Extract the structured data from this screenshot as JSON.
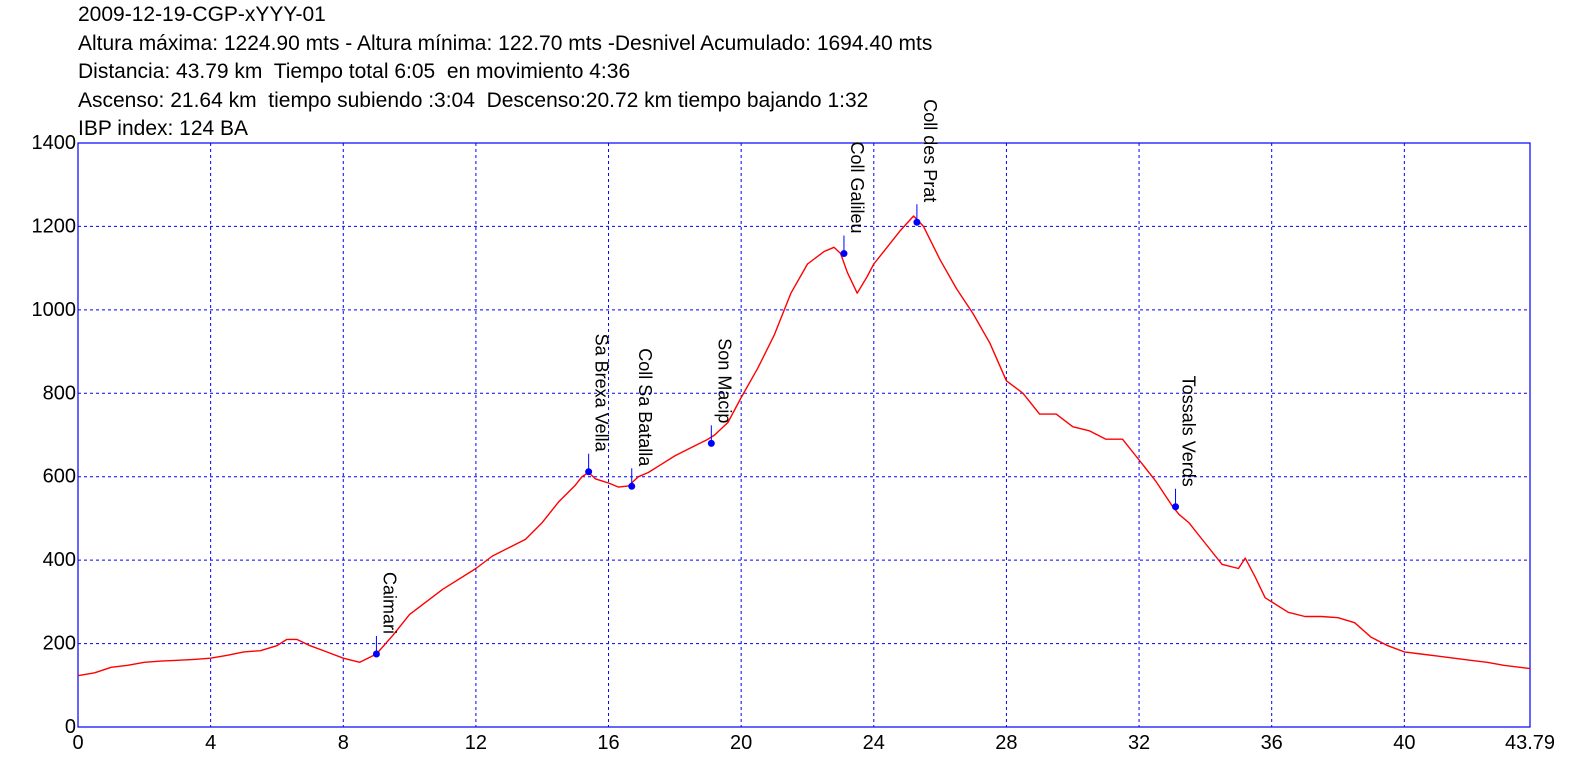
{
  "header": {
    "line1": "2009-12-19-CGP-xYYY-01",
    "line2": "Altura máxima: 1224.90 mts - Altura mínima: 122.70 mts -Desnivel Acumulado: 1694.40 mts",
    "line3": "Distancia: 43.79 km  Tiempo total 6:05  en movimiento 4:36",
    "line4": "Ascenso: 21.64 km  tiempo subiendo :3:04  Descenso:20.72 km tiempo bajando 1:32",
    "line5": "IBP index: 124 BA"
  },
  "chart_data": {
    "type": "line",
    "xlim": [
      0,
      43.79
    ],
    "ylim": [
      0,
      1400
    ],
    "x_ticks": [
      0,
      4,
      8,
      12,
      16,
      20,
      24,
      28,
      32,
      36,
      40,
      43.79
    ],
    "x_tick_labels": [
      "0",
      "4",
      "8",
      "12",
      "16",
      "20",
      "24",
      "28",
      "32",
      "36",
      "40",
      "43.79"
    ],
    "y_ticks": [
      0,
      200,
      400,
      600,
      800,
      1000,
      1200,
      1400
    ],
    "y_tick_labels": [
      "0",
      "200",
      "400",
      "600",
      "800",
      "1000",
      "1200",
      "1400"
    ],
    "grid": true,
    "line_color": "#ff0000",
    "marker_color": "#0000ff",
    "axis_color": "#0000ff",
    "series": [
      {
        "x": [
          0,
          0.5,
          1,
          1.5,
          2,
          2.5,
          3,
          3.5,
          4,
          4.5,
          5,
          5.5,
          6,
          6.3,
          6.6,
          7,
          7.5,
          8,
          8.5,
          9,
          9.5,
          10,
          11,
          12,
          12.5,
          13,
          13.5,
          14,
          14.5,
          15,
          15.2,
          15.4,
          15.6,
          15.8,
          16,
          16.3,
          16.6,
          16.9,
          17.2,
          17.6,
          18,
          18.5,
          19,
          19.2,
          19.6,
          20,
          20.5,
          21,
          21.5,
          22,
          22.5,
          22.8,
          23,
          23.2,
          23.5,
          23.8,
          24,
          24.4,
          24.8,
          25.2,
          25.5,
          26,
          26.5,
          27,
          27.5,
          28,
          28.5,
          29,
          29.5,
          30,
          30.5,
          31,
          31.5,
          32,
          32.5,
          33,
          33.2,
          33.5,
          34,
          34.5,
          35,
          35.2,
          35.5,
          35.8,
          36,
          36.5,
          37,
          37.5,
          38,
          38.5,
          39,
          39.5,
          40,
          40.5,
          41,
          41.5,
          42,
          42.5,
          43,
          43.79
        ],
        "y": [
          123,
          130,
          143,
          148,
          155,
          158,
          160,
          162,
          165,
          172,
          180,
          183,
          195,
          210,
          210,
          195,
          180,
          165,
          155,
          175,
          220,
          270,
          330,
          380,
          410,
          430,
          450,
          490,
          540,
          580,
          600,
          610,
          595,
          590,
          585,
          575,
          578,
          600,
          610,
          630,
          650,
          670,
          690,
          700,
          730,
          790,
          860,
          940,
          1040,
          1110,
          1140,
          1150,
          1135,
          1090,
          1040,
          1080,
          1110,
          1150,
          1190,
          1225,
          1200,
          1120,
          1050,
          990,
          920,
          830,
          800,
          750,
          750,
          720,
          710,
          690,
          690,
          640,
          590,
          530,
          510,
          490,
          440,
          390,
          380,
          405,
          360,
          310,
          300,
          275,
          265,
          265,
          262,
          250,
          215,
          195,
          180,
          175,
          170,
          165,
          160,
          155,
          148,
          140
        ]
      }
    ],
    "waypoints": [
      {
        "x": 9.0,
        "y": 175,
        "label": "Caimari"
      },
      {
        "x": 15.4,
        "y": 612,
        "label": "Sa Brexa Vella"
      },
      {
        "x": 16.7,
        "y": 577,
        "label": "Coll Sa Batalla"
      },
      {
        "x": 19.1,
        "y": 680,
        "label": "Son Macip"
      },
      {
        "x": 23.1,
        "y": 1135,
        "label": "Coll Galileu"
      },
      {
        "x": 25.3,
        "y": 1210,
        "label": "Coll des Prat"
      },
      {
        "x": 33.1,
        "y": 528,
        "label": "Tossals Verds"
      }
    ]
  }
}
